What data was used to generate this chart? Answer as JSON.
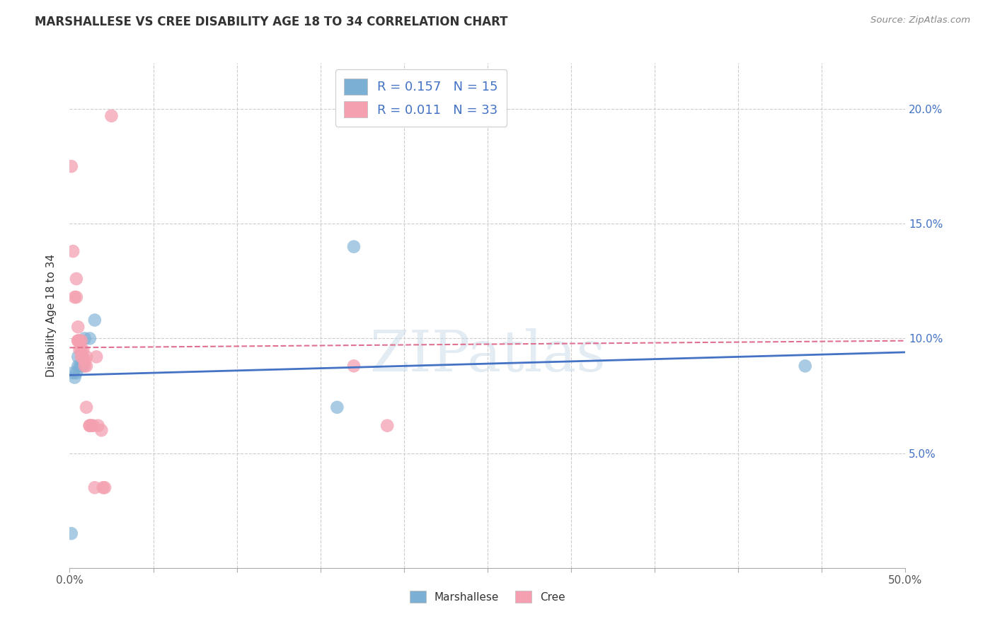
{
  "title": "MARSHALLESE VS CREE DISABILITY AGE 18 TO 34 CORRELATION CHART",
  "source": "Source: ZipAtlas.com",
  "ylabel": "Disability Age 18 to 34",
  "xlim": [
    0.0,
    0.5
  ],
  "ylim": [
    0.0,
    0.22
  ],
  "xticks": [
    0.0,
    0.05,
    0.1,
    0.15,
    0.2,
    0.25,
    0.3,
    0.35,
    0.4,
    0.45,
    0.5
  ],
  "yticks": [
    0.0,
    0.05,
    0.1,
    0.15,
    0.2
  ],
  "watermark": "ZIPatlas",
  "background_color": "#ffffff",
  "grid_color": "#cccccc",
  "marshallese_color": "#7bafd4",
  "cree_color": "#f4a0b0",
  "marshallese_line_color": "#4472c4",
  "cree_line_color": "#e07090",
  "R_marshallese": 0.157,
  "N_marshallese": 15,
  "R_cree": 0.011,
  "N_cree": 33,
  "marshallese_x": [
    0.001,
    0.002,
    0.003,
    0.004,
    0.005,
    0.005,
    0.006,
    0.007,
    0.008,
    0.009,
    0.012,
    0.015,
    0.16,
    0.17,
    0.44
  ],
  "marshallese_y": [
    0.015,
    0.085,
    0.083,
    0.085,
    0.088,
    0.092,
    0.088,
    0.088,
    0.088,
    0.1,
    0.1,
    0.108,
    0.07,
    0.14,
    0.088
  ],
  "cree_x": [
    0.001,
    0.002,
    0.003,
    0.004,
    0.004,
    0.005,
    0.005,
    0.005,
    0.006,
    0.006,
    0.007,
    0.007,
    0.007,
    0.008,
    0.008,
    0.009,
    0.009,
    0.01,
    0.01,
    0.01,
    0.012,
    0.012,
    0.013,
    0.014,
    0.015,
    0.016,
    0.017,
    0.019,
    0.02,
    0.021,
    0.025,
    0.17,
    0.19
  ],
  "cree_y": [
    0.175,
    0.138,
    0.118,
    0.126,
    0.118,
    0.105,
    0.099,
    0.099,
    0.099,
    0.095,
    0.099,
    0.095,
    0.092,
    0.095,
    0.092,
    0.09,
    0.088,
    0.092,
    0.088,
    0.07,
    0.062,
    0.062,
    0.062,
    0.062,
    0.035,
    0.092,
    0.062,
    0.06,
    0.035,
    0.035,
    0.197,
    0.088,
    0.062
  ],
  "marsh_trend_x0": 0.0,
  "marsh_trend_y0": 0.084,
  "marsh_trend_x1": 0.5,
  "marsh_trend_y1": 0.094,
  "cree_trend_x0": 0.0,
  "cree_trend_y0": 0.096,
  "cree_trend_x1": 0.5,
  "cree_trend_y1": 0.099
}
